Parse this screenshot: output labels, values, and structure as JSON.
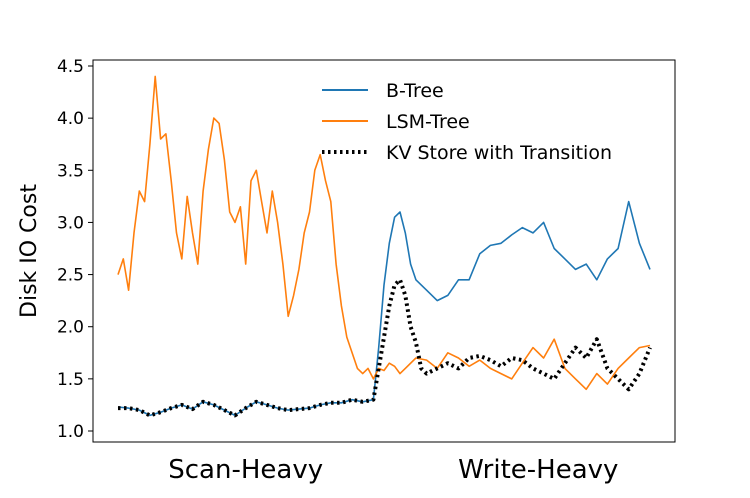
{
  "chart_data": {
    "type": "line",
    "title": "",
    "xlabel": "",
    "ylabel": "Disk IO Cost",
    "ylim": [
      1.0,
      4.5
    ],
    "yticks": [
      1.0,
      1.5,
      2.0,
      2.5,
      3.0,
      3.5,
      4.0,
      4.5
    ],
    "ytick_labels": [
      "1.0",
      "1.5",
      "2.0",
      "2.5",
      "3.0",
      "3.5",
      "4.0",
      "4.5"
    ],
    "xlim": [
      0,
      100
    ],
    "x_group_labels": [
      {
        "label": "Scan-Heavy",
        "x": 24
      },
      {
        "label": "Write-Heavy",
        "x": 79
      }
    ],
    "grid": false,
    "legend_position": "top-right",
    "series": [
      {
        "name": "B-Tree",
        "color": "#1f77b4",
        "style": "solid",
        "x": [
          0,
          2,
          4,
          6,
          8,
          10,
          12,
          14,
          16,
          18,
          20,
          22,
          24,
          26,
          28,
          30,
          32,
          34,
          36,
          38,
          40,
          42,
          44,
          46,
          48,
          49,
          50,
          51,
          52,
          53,
          54,
          55,
          56,
          58,
          60,
          62,
          64,
          66,
          68,
          70,
          72,
          74,
          76,
          78,
          80,
          82,
          84,
          86,
          88,
          90,
          92,
          94,
          96,
          98,
          100
        ],
        "y": [
          1.23,
          1.22,
          1.2,
          1.15,
          1.18,
          1.22,
          1.25,
          1.21,
          1.28,
          1.25,
          1.2,
          1.15,
          1.22,
          1.28,
          1.25,
          1.22,
          1.2,
          1.21,
          1.22,
          1.25,
          1.27,
          1.27,
          1.3,
          1.28,
          1.3,
          1.8,
          2.4,
          2.8,
          3.05,
          3.1,
          2.9,
          2.6,
          2.45,
          2.35,
          2.25,
          2.3,
          2.45,
          2.45,
          2.7,
          2.78,
          2.8,
          2.88,
          2.95,
          2.9,
          3.0,
          2.75,
          2.65,
          2.55,
          2.6,
          2.45,
          2.65,
          2.75,
          3.2,
          2.8,
          2.55
        ]
      },
      {
        "name": "LSM-Tree",
        "color": "#ff7f0e",
        "style": "solid",
        "x": [
          0,
          1,
          2,
          3,
          4,
          5,
          6,
          7,
          8,
          9,
          10,
          11,
          12,
          13,
          14,
          15,
          16,
          17,
          18,
          19,
          20,
          21,
          22,
          23,
          24,
          25,
          26,
          27,
          28,
          29,
          30,
          31,
          32,
          33,
          34,
          35,
          36,
          37,
          38,
          39,
          40,
          41,
          42,
          43,
          44,
          45,
          46,
          47,
          48,
          49,
          50,
          51,
          52,
          53,
          54,
          56,
          58,
          60,
          62,
          64,
          66,
          68,
          70,
          72,
          74,
          76,
          78,
          80,
          82,
          84,
          86,
          88,
          90,
          92,
          94,
          96,
          98,
          100
        ],
        "y": [
          2.5,
          2.65,
          2.35,
          2.9,
          3.3,
          3.2,
          3.75,
          4.4,
          3.8,
          3.85,
          3.4,
          2.9,
          2.65,
          3.25,
          2.9,
          2.6,
          3.3,
          3.7,
          4.0,
          3.95,
          3.6,
          3.1,
          3.0,
          3.15,
          2.6,
          3.4,
          3.5,
          3.2,
          2.9,
          3.3,
          3.0,
          2.6,
          2.1,
          2.3,
          2.55,
          2.9,
          3.1,
          3.5,
          3.65,
          3.4,
          3.2,
          2.6,
          2.2,
          1.9,
          1.75,
          1.6,
          1.55,
          1.6,
          1.5,
          1.6,
          1.58,
          1.65,
          1.62,
          1.55,
          1.6,
          1.7,
          1.68,
          1.6,
          1.75,
          1.7,
          1.62,
          1.68,
          1.6,
          1.55,
          1.5,
          1.65,
          1.8,
          1.7,
          1.88,
          1.6,
          1.5,
          1.4,
          1.55,
          1.45,
          1.6,
          1.7,
          1.8,
          1.82
        ]
      },
      {
        "name": "KV Store with Transition",
        "color": "#000000",
        "style": "dotted",
        "x": [
          0,
          2,
          4,
          6,
          8,
          10,
          12,
          14,
          16,
          18,
          20,
          22,
          24,
          26,
          28,
          30,
          32,
          34,
          36,
          38,
          40,
          42,
          44,
          46,
          48,
          49,
          50,
          51,
          52,
          53,
          54,
          55,
          56,
          57,
          58,
          60,
          62,
          64,
          66,
          68,
          70,
          72,
          74,
          76,
          78,
          80,
          82,
          84,
          86,
          88,
          90,
          92,
          94,
          96,
          98,
          100
        ],
        "y": [
          1.22,
          1.22,
          1.2,
          1.15,
          1.18,
          1.22,
          1.25,
          1.21,
          1.28,
          1.25,
          1.2,
          1.15,
          1.22,
          1.28,
          1.25,
          1.22,
          1.2,
          1.21,
          1.22,
          1.25,
          1.27,
          1.27,
          1.3,
          1.28,
          1.3,
          1.6,
          1.9,
          2.2,
          2.4,
          2.45,
          2.3,
          2.0,
          1.85,
          1.6,
          1.55,
          1.6,
          1.65,
          1.6,
          1.7,
          1.72,
          1.68,
          1.62,
          1.7,
          1.68,
          1.6,
          1.55,
          1.5,
          1.65,
          1.8,
          1.7,
          1.88,
          1.6,
          1.5,
          1.4,
          1.55,
          1.8
        ]
      }
    ]
  }
}
